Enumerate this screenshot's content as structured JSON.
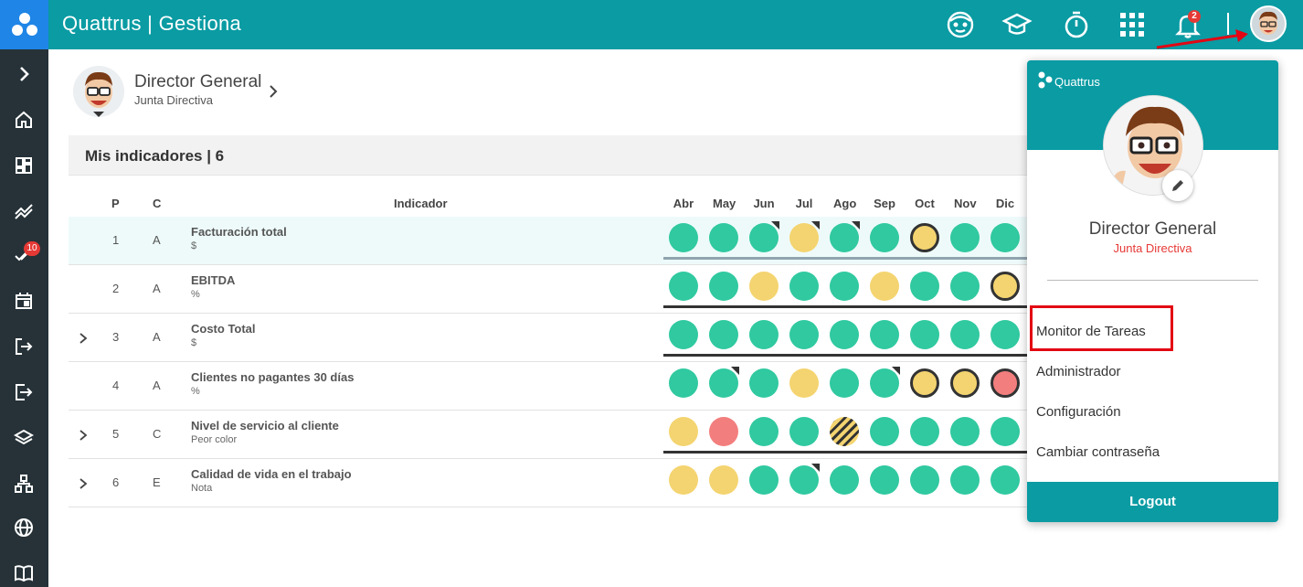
{
  "app": {
    "title": "Quattrus | Gestiona"
  },
  "topbar": {
    "icons": [
      "support-face-icon",
      "graduation-cap-icon",
      "stopwatch-icon",
      "apps-grid-icon",
      "bell-icon"
    ],
    "notifications_count": "2"
  },
  "sidebar": {
    "items": [
      "expand-icon",
      "home-icon",
      "dashboard-icon",
      "trend-icon",
      "tasks-icon",
      "calendar-icon",
      "login-icon",
      "logout-icon",
      "layers-icon",
      "org-chart-icon",
      "globe-icon",
      "book-icon"
    ],
    "tasks_badge": "10"
  },
  "user": {
    "name": "Director General",
    "role": "Junta Directiva"
  },
  "section": {
    "title": "Mis indicadores | 6"
  },
  "table": {
    "headers": {
      "p": "P",
      "c": "C",
      "indicator": "Indicador"
    },
    "months": [
      "Abr",
      "May",
      "Jun",
      "Jul",
      "Ago",
      "Sep",
      "Oct",
      "Nov",
      "Dic"
    ],
    "rows": [
      {
        "p": "1",
        "c": "A",
        "name": "Facturación total",
        "unit": "$",
        "expandable": false,
        "highlighted": true,
        "status": [
          "green",
          "green",
          "green",
          "yellow",
          "green",
          "green",
          "yellow-ring",
          "green",
          "green"
        ],
        "corner_flags": [
          false,
          false,
          true,
          true,
          true,
          false,
          false,
          false,
          false
        ],
        "baseline": "grey"
      },
      {
        "p": "2",
        "c": "A",
        "name": "EBITDA",
        "unit": "%",
        "expandable": false,
        "highlighted": false,
        "status": [
          "green",
          "green",
          "yellow",
          "green",
          "green",
          "yellow",
          "green",
          "green",
          "yellow-ring"
        ],
        "corner_flags": [
          false,
          false,
          false,
          false,
          false,
          false,
          false,
          false,
          false
        ],
        "baseline": "dark"
      },
      {
        "p": "3",
        "c": "A",
        "name": "Costo Total",
        "unit": "$",
        "expandable": true,
        "highlighted": false,
        "status": [
          "green",
          "green",
          "green",
          "green",
          "green",
          "green",
          "green",
          "green",
          "green"
        ],
        "corner_flags": [
          false,
          false,
          false,
          false,
          false,
          false,
          false,
          false,
          false
        ],
        "baseline": "dark"
      },
      {
        "p": "4",
        "c": "A",
        "name": "Clientes no pagantes 30 días",
        "unit": "%",
        "expandable": false,
        "highlighted": false,
        "status": [
          "green",
          "green",
          "green",
          "yellow",
          "green",
          "green",
          "yellow-ring",
          "yellow-ring",
          "red-ring"
        ],
        "corner_flags": [
          false,
          true,
          false,
          false,
          false,
          true,
          false,
          false,
          false
        ],
        "baseline": "none"
      },
      {
        "p": "5",
        "c": "C",
        "name": "Nivel de servicio al cliente",
        "unit": "Peor color",
        "expandable": true,
        "highlighted": false,
        "status": [
          "yellow",
          "red",
          "green",
          "green",
          "striped",
          "green",
          "green",
          "green",
          "green"
        ],
        "corner_flags": [
          false,
          false,
          false,
          false,
          false,
          false,
          false,
          false,
          false
        ],
        "baseline": "dark"
      },
      {
        "p": "6",
        "c": "E",
        "name": "Calidad de vida en el trabajo",
        "unit": "Nota",
        "expandable": true,
        "highlighted": false,
        "status": [
          "yellow",
          "yellow",
          "green",
          "green",
          "green",
          "green",
          "green",
          "green",
          "green"
        ],
        "corner_flags": [
          false,
          false,
          false,
          true,
          false,
          false,
          false,
          false,
          false
        ],
        "baseline": "none"
      }
    ]
  },
  "dropdown": {
    "brand": "Quattrus",
    "name": "Director General",
    "role": "Junta Directiva",
    "items": [
      "Monitor de Tareas",
      "Administrador",
      "Configuración",
      "Cambiar contraseña"
    ],
    "logout": "Logout"
  },
  "colors": {
    "teal": "#0a9ba3",
    "green": "#30c9a0",
    "yellow": "#f4d470",
    "red": "#f37e7e",
    "sidebar": "#263238"
  }
}
